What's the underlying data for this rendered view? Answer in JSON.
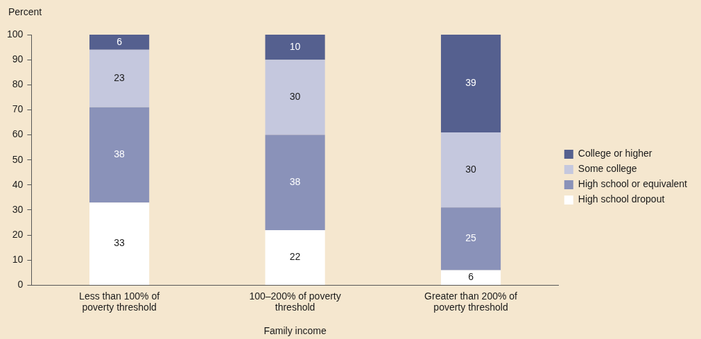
{
  "chart_data": {
    "type": "bar",
    "stacked": true,
    "ylabel": "Percent",
    "xlabel": "Family income",
    "categories": [
      "Less than 100% of poverty threshold",
      "100–200% of poverty threshold",
      "Greater than 200% of poverty threshold"
    ],
    "series": [
      {
        "name": "High school dropout",
        "color": "#ffffff",
        "values": [
          33,
          22,
          6
        ]
      },
      {
        "name": "High school or equivalent",
        "color": "#8a92b9",
        "values": [
          38,
          38,
          25
        ]
      },
      {
        "name": "Some college",
        "color": "#c5c8de",
        "values": [
          23,
          30,
          30
        ]
      },
      {
        "name": "College or higher",
        "color": "#55608f",
        "values": [
          6,
          10,
          39
        ]
      }
    ],
    "ylim": [
      0,
      100
    ],
    "yticks": [
      0,
      10,
      20,
      30,
      40,
      50,
      60,
      70,
      80,
      90,
      100
    ],
    "grid": false,
    "legend": "right",
    "data_labels": true
  }
}
